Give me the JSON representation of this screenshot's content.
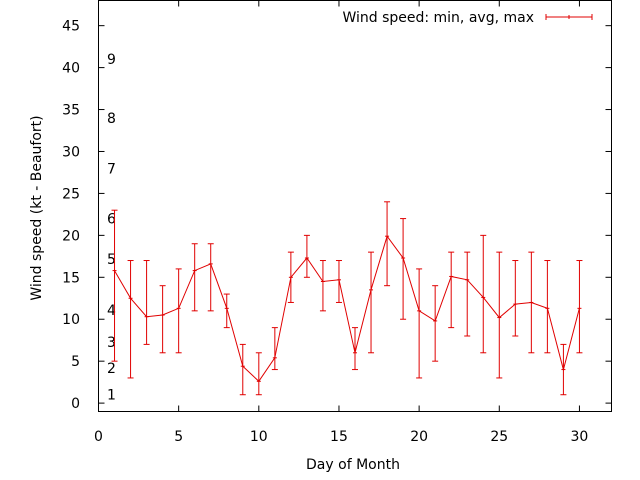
{
  "chart_data": {
    "type": "line",
    "xlabel": "Day of Month",
    "ylabel": "Wind speed (kt - Beaufort)",
    "xlim": [
      0,
      32
    ],
    "ylim": [
      -1,
      48
    ],
    "xticks": [
      0,
      5,
      10,
      15,
      20,
      25,
      30
    ],
    "xtick_labels": [
      "0",
      "5",
      "10",
      "15",
      "20",
      "25",
      "30"
    ],
    "yticks": [
      0,
      5,
      10,
      15,
      20,
      25,
      30,
      35,
      40,
      45
    ],
    "ytick_labels": [
      "0",
      "5",
      "10",
      "15",
      "20",
      "25",
      "30",
      "35",
      "40",
      "45"
    ],
    "grid": false,
    "legend_position": "top-right",
    "beaufort_labels": [
      {
        "label": "1",
        "y": 1.0
      },
      {
        "label": "2",
        "y": 4.2
      },
      {
        "label": "3",
        "y": 7.3
      },
      {
        "label": "4",
        "y": 11.1
      },
      {
        "label": "5",
        "y": 17.2
      },
      {
        "label": "6",
        "y": 22.0
      },
      {
        "label": "7",
        "y": 28.0
      },
      {
        "label": "8",
        "y": 34.0
      },
      {
        "label": "9",
        "y": 41.0
      }
    ],
    "series": [
      {
        "name": "Wind speed: min, avg, max",
        "color": "#e00000",
        "x": [
          1,
          2,
          3,
          4,
          5,
          6,
          7,
          8,
          9,
          10,
          11,
          12,
          13,
          14,
          15,
          16,
          17,
          18,
          19,
          20,
          21,
          22,
          23,
          24,
          25,
          26,
          27,
          28,
          29,
          30
        ],
        "y": [
          15.8,
          12.5,
          10.3,
          10.5,
          11.3,
          15.8,
          16.6,
          11.3,
          4.4,
          2.6,
          5.4,
          15.0,
          17.3,
          14.5,
          14.7,
          6.0,
          13.5,
          19.9,
          17.3,
          11.0,
          9.8,
          15.1,
          14.7,
          12.6,
          10.2,
          11.8,
          12.0,
          11.3,
          4.0,
          11.3
        ],
        "min": [
          5,
          3,
          7,
          6,
          6,
          11,
          11,
          9,
          1,
          1,
          4,
          12,
          15,
          11,
          12,
          4,
          6,
          14,
          10,
          3,
          5,
          9,
          8,
          6,
          3,
          8,
          6,
          6,
          1,
          6
        ],
        "max": [
          23,
          17,
          17,
          14,
          16,
          19,
          19,
          13,
          7,
          6,
          9,
          18,
          20,
          17,
          17,
          9,
          18,
          24,
          22,
          16,
          14,
          18,
          18,
          20,
          18,
          17,
          18,
          17,
          7,
          17
        ]
      }
    ]
  }
}
